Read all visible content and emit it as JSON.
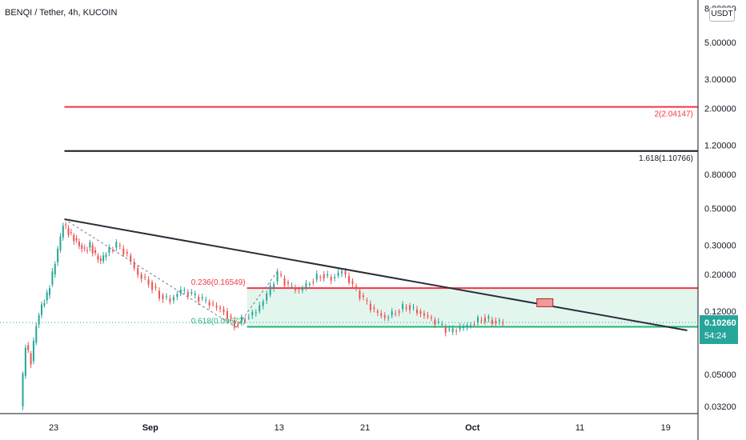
{
  "title": "BENQI / Tether, 4h, KUCOIN",
  "currency": "USDT",
  "last_price": "0.10260",
  "countdown": "54:24",
  "colors": {
    "up": "#26a69a",
    "down": "#ef5350",
    "red_level": "#f23645",
    "black_level": "#131722",
    "green_level": "#22b573",
    "fill": "#e3f6ee",
    "trendline": "#2a2e39"
  },
  "chart_data": {
    "type": "candlestick",
    "y_scale": "log",
    "ylim": [
      0.029,
      9.0
    ],
    "xlim": [
      "2021-08-18",
      "2021-10-22"
    ],
    "y_ticks": [
      "8.00000",
      "5.00000",
      "3.00000",
      "2.00000",
      "1.20000",
      "0.80000",
      "0.50000",
      "0.30000",
      "0.20000",
      "0.12000",
      "0.05000",
      "0.03200"
    ],
    "x_ticks": [
      "23",
      "Sep",
      "13",
      "21",
      "Oct",
      "11",
      "19"
    ],
    "x_tick_dates": [
      "2021-08-23",
      "2021-09-01",
      "2021-09-13",
      "2021-09-21",
      "2021-10-01",
      "2021-10-11",
      "2021-10-19"
    ],
    "fib_levels": [
      {
        "label": "2(2.04147)",
        "value": 2.04147,
        "color": "red"
      },
      {
        "label": "1.618(1.10766)",
        "value": 1.10766,
        "color": "black"
      },
      {
        "label": "0.236(0.16549)",
        "value": 0.16549,
        "color": "red"
      },
      {
        "label": "0.618(0.09672)",
        "value": 0.09672,
        "color": "green"
      }
    ],
    "trendline": {
      "from": {
        "date": "2021-08-24",
        "price": 0.43
      },
      "to": {
        "date": "2021-10-21",
        "price": 0.092
      }
    },
    "close_series": [
      [
        "2021-08-20",
        0.032
      ],
      [
        "2021-08-20",
        0.075
      ],
      [
        "2021-08-21",
        0.06
      ],
      [
        "2021-08-21",
        0.1
      ],
      [
        "2021-08-22",
        0.13
      ],
      [
        "2021-08-22",
        0.15
      ],
      [
        "2021-08-23",
        0.2
      ],
      [
        "2021-08-23",
        0.28
      ],
      [
        "2021-08-24",
        0.4
      ],
      [
        "2021-08-24",
        0.36
      ],
      [
        "2021-08-25",
        0.33
      ],
      [
        "2021-08-25",
        0.3
      ],
      [
        "2021-08-26",
        0.28
      ],
      [
        "2021-08-26",
        0.3
      ],
      [
        "2021-08-27",
        0.26
      ],
      [
        "2021-08-27",
        0.24
      ],
      [
        "2021-08-28",
        0.27
      ],
      [
        "2021-08-29",
        0.3
      ],
      [
        "2021-08-30",
        0.26
      ],
      [
        "2021-08-31",
        0.2
      ],
      [
        "2021-09-01",
        0.18
      ],
      [
        "2021-09-02",
        0.15
      ],
      [
        "2021-09-03",
        0.14
      ],
      [
        "2021-09-04",
        0.16
      ],
      [
        "2021-09-05",
        0.15
      ],
      [
        "2021-09-06",
        0.14
      ],
      [
        "2021-09-07",
        0.13
      ],
      [
        "2021-09-08",
        0.12
      ],
      [
        "2021-09-09",
        0.1
      ],
      [
        "2021-09-10",
        0.11
      ],
      [
        "2021-09-11",
        0.12
      ],
      [
        "2021-09-12",
        0.15
      ],
      [
        "2021-09-13",
        0.2
      ],
      [
        "2021-09-14",
        0.17
      ],
      [
        "2021-09-15",
        0.16
      ],
      [
        "2021-09-16",
        0.18
      ],
      [
        "2021-09-17",
        0.2
      ],
      [
        "2021-09-18",
        0.19
      ],
      [
        "2021-09-19",
        0.21
      ],
      [
        "2021-09-20",
        0.17
      ],
      [
        "2021-09-21",
        0.14
      ],
      [
        "2021-09-22",
        0.12
      ],
      [
        "2021-09-23",
        0.11
      ],
      [
        "2021-09-24",
        0.12
      ],
      [
        "2021-09-25",
        0.13
      ],
      [
        "2021-09-26",
        0.12
      ],
      [
        "2021-09-27",
        0.11
      ],
      [
        "2021-09-28",
        0.1
      ],
      [
        "2021-09-29",
        0.09
      ],
      [
        "2021-09-30",
        0.095
      ],
      [
        "2021-10-01",
        0.1
      ],
      [
        "2021-10-02",
        0.11
      ],
      [
        "2021-10-03",
        0.105
      ],
      [
        "2021-10-04",
        0.1026
      ]
    ]
  }
}
